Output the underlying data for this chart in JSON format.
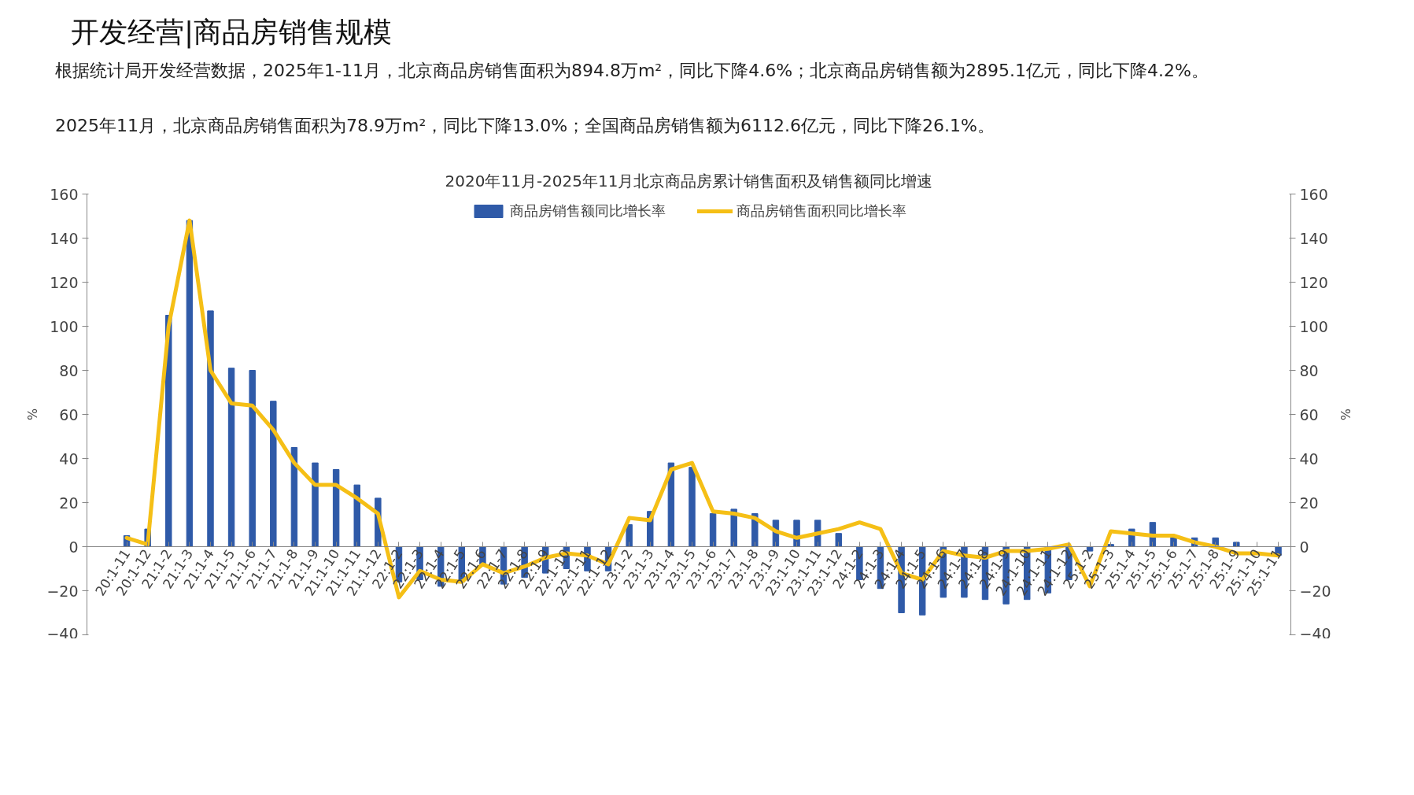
{
  "chart_data": {
    "type": "bar",
    "title": "开发经营|商品房销售规模",
    "annotations": [
      "根据统计局开发经营数据，2025年1-11月，北京商品房销售面积为894.8万m²，同比下降4.6%；北京商品房销售额为2895.1亿元，同比下降4.2%。",
      "2025年11月，北京商品房销售面积为78.9万m²，同比下降13.0%；全国商品房销售额为6112.6亿元，同比下降26.1%。"
    ],
    "subtitle": "2020年11月-2025年11月北京商品房累计销售面积及销售额同比增速",
    "ylabel": "%",
    "y2label": "%",
    "categories": [
      "20:1-11",
      "20:1-12",
      "21:1-2",
      "21:1-3",
      "21:1-4",
      "21:1-5",
      "21:1-6",
      "21:1-7",
      "21:1-8",
      "21:1-9",
      "21:1-10",
      "21:1-11",
      "21:1-12",
      "22:1-2",
      "22:1-3",
      "22:1-4",
      "22:1-5",
      "22:1-6",
      "22:1-7",
      "22:1-8",
      "22:1-9",
      "22:1-10",
      "22:1-11",
      "22:1-12",
      "23:1-2",
      "23:1-3",
      "23:1-4",
      "23:1-5",
      "23:1-6",
      "23:1-7",
      "23:1-8",
      "23:1-9",
      "23:1-10",
      "23:1-11",
      "23:1-12",
      "24:1-2",
      "24:1-3",
      "24:1-4",
      "24:1-5",
      "24:1-6",
      "24:1-7",
      "24:1-8",
      "24:1-9",
      "24:1-10",
      "24:1-11",
      "24:1-12",
      "25:1-2",
      "25:1-3",
      "25:1-4",
      "25:1-5",
      "25:1-6",
      "25:1-7",
      "25:1-8",
      "25:1-9",
      "25:1-10",
      "25:1-11"
    ],
    "series": [
      {
        "name": "商品房销售额同比增长率",
        "color": "#2f5aa8",
        "values": [
          5,
          8,
          105,
          148,
          107,
          81,
          80,
          66,
          45,
          38,
          35,
          28,
          22,
          -16,
          -15,
          -18,
          -16,
          -8,
          -17,
          -14,
          -12,
          -10,
          -11,
          -11,
          10,
          16,
          38,
          36,
          15,
          17,
          15,
          12,
          12,
          12,
          6,
          -15,
          -19,
          -30,
          -31,
          -23,
          -23,
          -24,
          -26,
          -24,
          -21,
          -15,
          -2,
          1,
          8,
          11,
          5,
          4,
          4,
          2,
          0,
          -4
        ]
      },
      {
        "name": "商品房销售面积同比增长率",
        "type": "line",
        "color": "#f5bf16",
        "values": [
          4,
          1,
          100,
          148,
          80,
          65,
          64,
          53,
          38,
          28,
          28,
          22,
          15,
          -23,
          -11,
          -15,
          -16,
          -8,
          -12,
          -9,
          -5,
          -3,
          -4,
          -8,
          13,
          12,
          35,
          38,
          16,
          15,
          13,
          7,
          4,
          6,
          8,
          11,
          8,
          -12,
          -15,
          -2,
          -4,
          -5,
          -2,
          -2,
          -1,
          1,
          -18,
          7,
          6,
          5,
          5,
          2,
          0,
          -3,
          -3,
          -4
        ]
      }
    ],
    "ylim": [
      -40,
      160
    ],
    "yticks": [
      -40,
      -20,
      0,
      20,
      40,
      60,
      80,
      100,
      120,
      140,
      160
    ],
    "y2lim": [
      -40,
      160
    ],
    "y2ticks": [
      -40,
      -20,
      0,
      20,
      40,
      60,
      80,
      100,
      120,
      140,
      160
    ],
    "legend": "top",
    "grid": false,
    "line_style": "solid",
    "marker": "none"
  }
}
